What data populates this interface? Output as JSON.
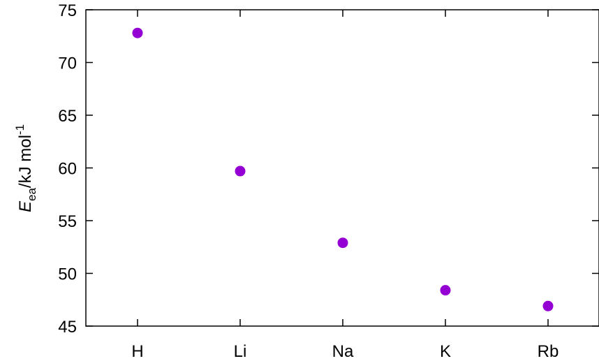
{
  "chart_data": {
    "type": "scatter",
    "categories": [
      "H",
      "Li",
      "Na",
      "K",
      "Rb"
    ],
    "values": [
      72.8,
      59.7,
      52.9,
      48.4,
      46.9
    ],
    "ylabel": {
      "main": "E",
      "subscript": "ea",
      "unit": "/kJ mol",
      "superscript": "-1"
    },
    "ylim": [
      45,
      75
    ],
    "yticks": [
      45,
      50,
      55,
      60,
      65,
      70,
      75
    ],
    "grid": false,
    "legend": "none",
    "marker_color": "#9400d3"
  }
}
